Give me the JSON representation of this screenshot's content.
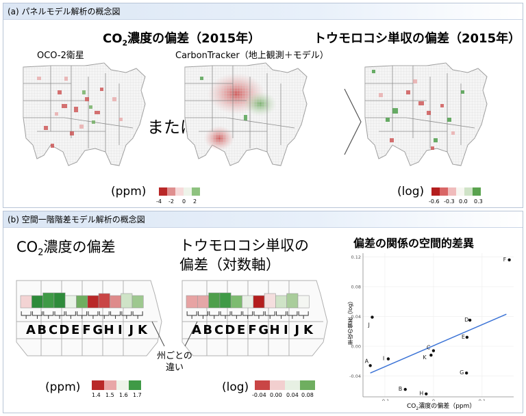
{
  "panel_a": {
    "header": "(a) パネルモデル解析の概念図",
    "co2_title_pre": "CO",
    "co2_title_sub": "2",
    "co2_title_post": "濃度の偏差（2015年）",
    "oco2_label": "OCO-2衛星",
    "carbontracker_label": "CarbonTracker（地上観測＋モデル）",
    "or_label": "または",
    "yield_title": "トウモロコシ単収の偏差（2015年）",
    "co2_unit": "(ppm)",
    "co2_ticks": [
      "-4",
      "-2",
      "0",
      "2"
    ],
    "yield_unit": "(log)",
    "yield_ticks": [
      "-0.6",
      "-0.3",
      "0.0",
      "0.3"
    ]
  },
  "panel_b": {
    "header": "(b) 空間一階階差モデル解析の概念図",
    "co2_title_pre": "CO",
    "co2_title_sub": "2",
    "co2_title_post": "濃度の偏差",
    "yield_title_line1": "トウモロコシ単収の",
    "yield_title_line2": "偏差（対数軸）",
    "letters": [
      "A",
      "B",
      "C",
      "D",
      "E",
      "F",
      "G",
      "H",
      "I",
      "J",
      "K"
    ],
    "diff_label_line1": "州ごとの",
    "diff_label_line2": "違い",
    "co2_unit": "(ppm)",
    "co2_ticks": [
      "1.4",
      "1.5",
      "1.6",
      "1.7"
    ],
    "yield_unit": "(log)",
    "yield_ticks": [
      "-0.04",
      "0.00",
      "0.04",
      "0.08"
    ],
    "colors": {
      "co2_strip": [
        "#f3d3d3",
        "#2e8b3a",
        "#3f9a46",
        "#2e8b3a",
        "#e8f2e6",
        "#6fae60",
        "#b92828",
        "#c94545",
        "#de8a8a",
        "#cfe3c7",
        "#9ec88f"
      ],
      "yield_strip": [
        "#e7a3a3",
        "#e4a7a7",
        "#4f9f4c",
        "#3f9a46",
        "#7dbb70",
        "#e9efe6",
        "#b41e1e",
        "#f4dede",
        "#cfe3c7",
        "#a9cd9b",
        "#f4f6f2"
      ]
    }
  },
  "chart_data": {
    "type": "scatter",
    "title": "偏差の関係の空間的差異",
    "xlabel_pre": "CO",
    "xlabel_sub": "2",
    "xlabel_post": "濃度の偏差（ppm）",
    "ylabel": "単収の偏差（log）",
    "xlim": [
      -0.145,
      0.165
    ],
    "ylim": [
      -0.068,
      0.125
    ],
    "xticks": [
      "-0.1",
      "0",
      "0.1"
    ],
    "yticks": [
      "-0.04",
      "0.00",
      "0.04",
      "0.08",
      "0.12"
    ],
    "points": [
      {
        "label": "A",
        "x": -0.13,
        "y": -0.026
      },
      {
        "label": "B",
        "x": -0.058,
        "y": -0.058
      },
      {
        "label": "C",
        "x": 0.0,
        "y": -0.006
      },
      {
        "label": "D",
        "x": 0.075,
        "y": 0.035
      },
      {
        "label": "E",
        "x": 0.069,
        "y": 0.012
      },
      {
        "label": "F",
        "x": 0.156,
        "y": 0.116
      },
      {
        "label": "G",
        "x": 0.068,
        "y": -0.036
      },
      {
        "label": "H",
        "x": -0.015,
        "y": -0.064
      },
      {
        "label": "I",
        "x": -0.093,
        "y": -0.017
      },
      {
        "label": "J",
        "x": -0.126,
        "y": 0.039
      },
      {
        "label": "K",
        "x": -0.005,
        "y": -0.012
      }
    ],
    "fit_line": {
      "x": [
        -0.13,
        0.15
      ],
      "y": [
        -0.036,
        0.043
      ]
    },
    "fit_color": "#3b73d6"
  }
}
